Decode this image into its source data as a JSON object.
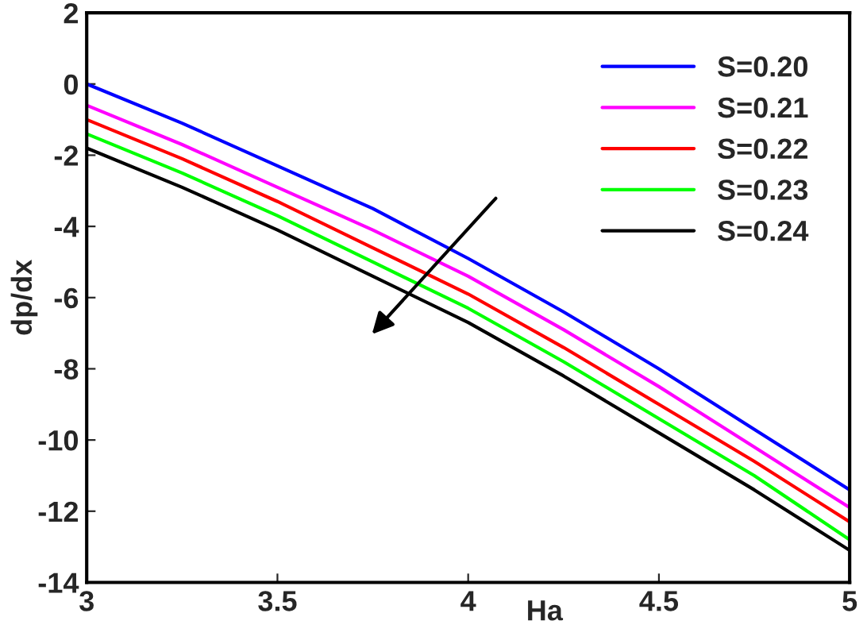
{
  "chart_data": {
    "type": "line",
    "xlabel": "Ha",
    "ylabel": "dp/dx",
    "x": [
      3,
      3.25,
      3.5,
      3.75,
      4,
      4.25,
      4.5,
      4.75,
      5
    ],
    "series": [
      {
        "name": "S=0.20",
        "color": "#0000ff",
        "values": [
          0,
          -1.1,
          -2.3,
          -3.5,
          -4.9,
          -6.4,
          -8.0,
          -9.7,
          -11.4
        ]
      },
      {
        "name": "S=0.21",
        "color": "#ff00ff",
        "values": [
          -0.6,
          -1.7,
          -2.9,
          -4.1,
          -5.4,
          -6.9,
          -8.5,
          -10.2,
          -11.9
        ]
      },
      {
        "name": "S=0.22",
        "color": "#ff0000",
        "values": [
          -1.0,
          -2.1,
          -3.3,
          -4.6,
          -5.9,
          -7.4,
          -9.0,
          -10.6,
          -12.3
        ]
      },
      {
        "name": "S=0.23",
        "color": "#00ff00",
        "values": [
          -1.4,
          -2.5,
          -3.7,
          -5.0,
          -6.3,
          -7.8,
          -9.4,
          -11.0,
          -12.8
        ]
      },
      {
        "name": "S=0.24",
        "color": "#000000",
        "values": [
          -1.8,
          -2.9,
          -4.1,
          -5.4,
          -6.7,
          -8.2,
          -9.8,
          -11.4,
          -13.1
        ]
      }
    ],
    "xlim": [
      3,
      5
    ],
    "xticks": [
      3,
      3.5,
      4,
      4.5,
      5
    ],
    "ylim": [
      -14,
      2
    ],
    "yticks": [
      -14,
      -12,
      -10,
      -8,
      -6,
      -4,
      -2,
      0,
      2
    ],
    "grid": false,
    "legend": "top right",
    "line_style": "solid",
    "marker": "none"
  }
}
